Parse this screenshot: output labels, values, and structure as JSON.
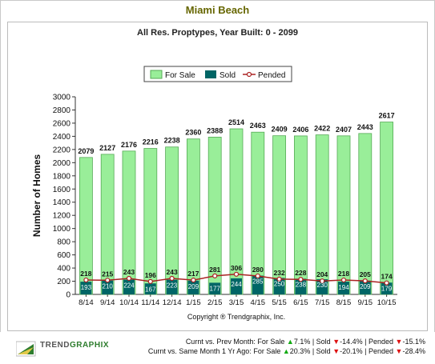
{
  "title": "Miami Beach",
  "subtitle": "All Res. Proptypes, Year Built: 0 - 2099",
  "copyright": "Copyright ® Trendgraphix, Inc.",
  "brand": {
    "name_part1": "TREND",
    "name_part2": "GRAPHIX"
  },
  "stats": {
    "line1": {
      "prefix": "Curnt vs. Prev Month:",
      "for_sale_label": "For Sale",
      "for_sale_value": "7.1%",
      "sold_label": "Sold",
      "sold_value": "-14.4%",
      "pended_label": "Pended",
      "pended_value": "-15.1%"
    },
    "line2": {
      "prefix": "Curnt vs. Same Month 1 Yr Ago:",
      "for_sale_label": "For Sale",
      "for_sale_value": "20.3%",
      "sold_label": "Sold",
      "sold_value": "-20.1%",
      "pended_label": "Pended",
      "pended_value": "-28.4%"
    }
  },
  "colors": {
    "for_sale": "#99ee99",
    "sold": "#006666",
    "pended": "#aa2222",
    "title": "#666600"
  },
  "chart_data": {
    "type": "bar",
    "categories": [
      "8/14",
      "9/14",
      "10/14",
      "11/14",
      "12/14",
      "1/15",
      "2/15",
      "3/15",
      "4/15",
      "5/15",
      "6/15",
      "7/15",
      "8/15",
      "9/15",
      "10/15"
    ],
    "series": [
      {
        "name": "For Sale",
        "type": "bar",
        "values": [
          2079,
          2127,
          2176,
          2216,
          2238,
          2360,
          2388,
          2514,
          2463,
          2409,
          2406,
          2422,
          2407,
          2443,
          2617
        ]
      },
      {
        "name": "Sold",
        "type": "bar",
        "values": [
          193,
          210,
          224,
          167,
          223,
          209,
          177,
          244,
          285,
          250,
          238,
          230,
          194,
          209,
          179
        ]
      },
      {
        "name": "Pended",
        "type": "line",
        "values": [
          218,
          215,
          243,
          196,
          243,
          217,
          281,
          306,
          280,
          232,
          228,
          204,
          218,
          205,
          174
        ]
      }
    ],
    "ylabel": "Number of Homes",
    "ylim": [
      0,
      3000
    ],
    "yticks": [
      0,
      200,
      400,
      600,
      800,
      1000,
      1200,
      1400,
      1600,
      1800,
      2000,
      2200,
      2400,
      2600,
      2800,
      3000
    ],
    "legend": "top-center",
    "grid": false
  }
}
